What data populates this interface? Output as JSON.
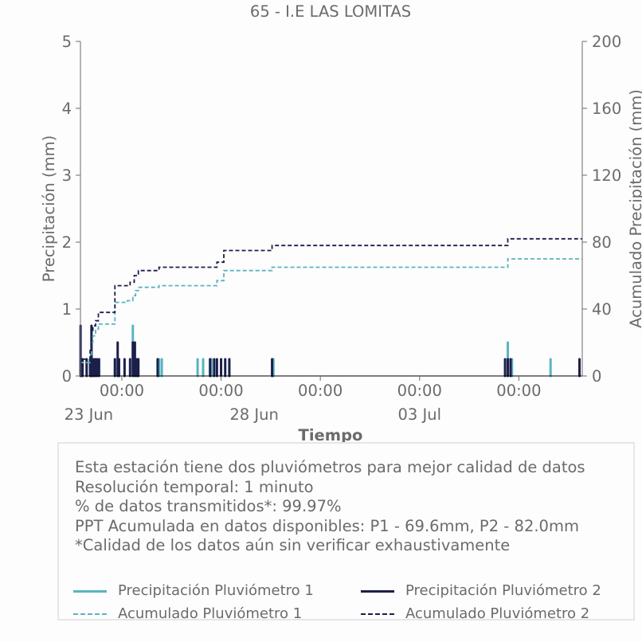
{
  "title": "65 - I.E LAS LOMITAS",
  "notes": [
    "Esta estación tiene dos pluviómetros para mejor calidad de datos",
    "Resolución temporal: 1 minuto",
    "% de datos transmitidos*: 99.97%",
    "PPT Acumulada en datos disponibles: P1 - 69.6mm, P2 - 82.0mm",
    "*Calidad de los datos aún sin verificar exhaustivamente"
  ],
  "legend": {
    "p1": "Precipitación Pluviómetro 1",
    "p2": "Precipitación Pluviómetro 2",
    "a1": "Acumulado Pluviómetro 1",
    "a2": "Acumulado Pluviómetro 2"
  },
  "colors": {
    "p1": "#5ab4c1",
    "p2": "#1c1f4a",
    "axis": "#6b6b6b"
  },
  "chart_data": {
    "type": "line",
    "title": "65 - I.E LAS LOMITAS",
    "xlabel": "Tiempo",
    "ylabel": "Precipitación (mm)",
    "y2label": "Acumulado Precipitación (mm)",
    "xlim": [
      "2023-06-22T18:00",
      "2023-07-07T22:00"
    ],
    "ylim": [
      0,
      5
    ],
    "y2lim": [
      0,
      200
    ],
    "yticks": [
      0,
      1,
      2,
      3,
      4,
      5
    ],
    "y2ticks": [
      0,
      40,
      80,
      120,
      160,
      200
    ],
    "xticks": [
      {
        "at": "2023-06-24T00:00",
        "label": "00:00"
      },
      {
        "at": "2023-06-27T00:00",
        "label": "00:00"
      },
      {
        "at": "2023-06-30T00:00",
        "label": "00:00"
      },
      {
        "at": "2023-07-03T00:00",
        "label": "00:00"
      },
      {
        "at": "2023-07-06T00:00",
        "label": "00:00"
      }
    ],
    "date_labels": [
      {
        "at": "2023-06-23T00:00",
        "label": "23 Jun"
      },
      {
        "at": "2023-06-28T00:00",
        "label": "28 Jun"
      },
      {
        "at": "2023-07-03T00:00",
        "label": "03 Jul"
      }
    ],
    "grid": false,
    "series": [
      {
        "name": "Precipitación Pluviómetro 1",
        "kind": "bar",
        "axis": "left",
        "color": "#5ab4c1",
        "points": [
          [
            "2023-06-22T18:05",
            0.25
          ],
          [
            "2023-06-23T02:05",
            0.5
          ],
          [
            "2023-06-23T03:30",
            0.25
          ],
          [
            "2023-06-23T05:00",
            0.25
          ],
          [
            "2023-06-23T19:00",
            0.25
          ],
          [
            "2023-06-24T08:00",
            0.75
          ],
          [
            "2023-06-24T10:00",
            0.25
          ],
          [
            "2023-06-24T12:00",
            0.25
          ],
          [
            "2023-06-25T03:00",
            0.25
          ],
          [
            "2023-06-25T05:00",
            0.25
          ],
          [
            "2023-06-26T07:00",
            0.25
          ],
          [
            "2023-06-26T11:00",
            0.25
          ],
          [
            "2023-06-26T17:00",
            0.25
          ],
          [
            "2023-06-28T14:00",
            0.25
          ],
          [
            "2023-07-05T16:00",
            0.5
          ],
          [
            "2023-07-05T19:00",
            0.25
          ],
          [
            "2023-07-06T23:00",
            0.25
          ]
        ]
      },
      {
        "name": "Precipitación Pluviómetro 2",
        "kind": "bar",
        "axis": "left",
        "color": "#1c1f4a",
        "points": [
          [
            "2023-06-22T18:05",
            0.75
          ],
          [
            "2023-06-22T19:30",
            0.25
          ],
          [
            "2023-06-22T22:30",
            0.25
          ],
          [
            "2023-06-23T01:00",
            0.25
          ],
          [
            "2023-06-23T02:00",
            0.75
          ],
          [
            "2023-06-23T03:00",
            0.25
          ],
          [
            "2023-06-23T04:30",
            0.25
          ],
          [
            "2023-06-23T06:00",
            0.25
          ],
          [
            "2023-06-23T07:30",
            0.25
          ],
          [
            "2023-06-23T19:00",
            0.25
          ],
          [
            "2023-06-23T21:00",
            0.5
          ],
          [
            "2023-06-23T22:00",
            0.25
          ],
          [
            "2023-06-24T02:00",
            0.25
          ],
          [
            "2023-06-24T06:00",
            0.25
          ],
          [
            "2023-06-24T08:00",
            0.5
          ],
          [
            "2023-06-24T09:30",
            0.5
          ],
          [
            "2023-06-24T11:00",
            0.25
          ],
          [
            "2023-06-24T12:00",
            0.25
          ],
          [
            "2023-06-25T02:00",
            0.25
          ],
          [
            "2023-06-26T16:00",
            0.25
          ],
          [
            "2023-06-26T19:00",
            0.25
          ],
          [
            "2023-06-26T21:00",
            0.25
          ],
          [
            "2023-06-27T00:00",
            0.25
          ],
          [
            "2023-06-27T03:00",
            0.25
          ],
          [
            "2023-06-27T06:00",
            0.25
          ],
          [
            "2023-06-28T13:00",
            0.25
          ],
          [
            "2023-07-05T14:00",
            0.25
          ],
          [
            "2023-07-05T16:00",
            0.25
          ],
          [
            "2023-07-05T18:00",
            0.25
          ],
          [
            "2023-07-07T20:00",
            0.25
          ]
        ]
      },
      {
        "name": "Acumulado Pluviómetro 1",
        "kind": "step",
        "axis": "right",
        "color": "#5ab4c1",
        "points": [
          [
            "2023-06-22T18:00",
            0
          ],
          [
            "2023-06-22T18:10",
            8
          ],
          [
            "2023-06-23T01:00",
            12
          ],
          [
            "2023-06-23T02:00",
            20
          ],
          [
            "2023-06-23T03:00",
            24
          ],
          [
            "2023-06-23T05:00",
            28
          ],
          [
            "2023-06-23T07:00",
            31
          ],
          [
            "2023-06-23T19:00",
            44
          ],
          [
            "2023-06-24T04:00",
            45
          ],
          [
            "2023-06-24T08:00",
            48
          ],
          [
            "2023-06-24T10:00",
            51
          ],
          [
            "2023-06-24T12:00",
            53
          ],
          [
            "2023-06-25T03:00",
            54
          ],
          [
            "2023-06-26T21:00",
            57
          ],
          [
            "2023-06-27T02:00",
            63
          ],
          [
            "2023-06-28T13:00",
            65
          ],
          [
            "2023-07-05T16:00",
            70
          ],
          [
            "2023-07-07T12:00",
            70
          ],
          [
            "2023-07-07T22:00",
            70
          ]
        ]
      },
      {
        "name": "Acumulado Pluviómetro 2",
        "kind": "step",
        "axis": "right",
        "color": "#1c1f4a",
        "points": [
          [
            "2023-06-22T18:00",
            0
          ],
          [
            "2023-06-22T18:10",
            10
          ],
          [
            "2023-06-23T01:00",
            16
          ],
          [
            "2023-06-23T02:00",
            26
          ],
          [
            "2023-06-23T03:00",
            30
          ],
          [
            "2023-06-23T05:00",
            33
          ],
          [
            "2023-06-23T07:00",
            38
          ],
          [
            "2023-06-23T19:00",
            54
          ],
          [
            "2023-06-24T06:00",
            56
          ],
          [
            "2023-06-24T09:00",
            60
          ],
          [
            "2023-06-24T12:00",
            63
          ],
          [
            "2023-06-25T03:00",
            65
          ],
          [
            "2023-06-26T21:00",
            68
          ],
          [
            "2023-06-27T02:00",
            75
          ],
          [
            "2023-06-28T13:00",
            78
          ],
          [
            "2023-07-05T16:00",
            82
          ],
          [
            "2023-07-07T12:00",
            82
          ],
          [
            "2023-07-07T22:00",
            82
          ]
        ]
      }
    ]
  }
}
